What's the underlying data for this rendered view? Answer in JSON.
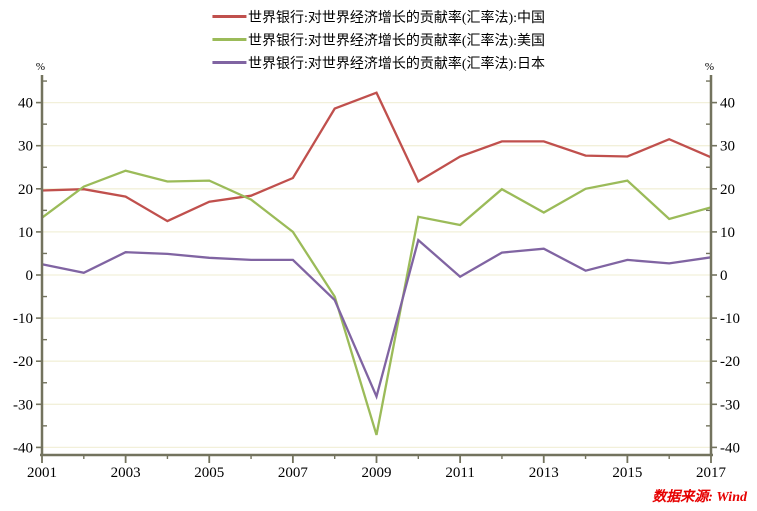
{
  "source_note": "数据来源: Wind",
  "colors": {
    "china_line": "#c0504d",
    "usa_line": "#9bbb59",
    "japan_line": "#8064a2",
    "grid": "#f2f0da",
    "axis": "#73735e",
    "tick_label": "#000000",
    "source_text": "#e60000"
  },
  "chart_data": {
    "type": "line",
    "title": "",
    "xlabel": "",
    "ylabel": "%",
    "grid": "horizontal",
    "legend_position": "top",
    "x": [
      2001,
      2002,
      2003,
      2004,
      2005,
      2006,
      2007,
      2008,
      2009,
      2010,
      2011,
      2012,
      2013,
      2014,
      2015,
      2016,
      2017
    ],
    "xtick_labels": [
      "2001",
      "2003",
      "2005",
      "2007",
      "2009",
      "2011",
      "2013",
      "2015",
      "2017"
    ],
    "ytick_labels": [
      "-40",
      "-30",
      "-20",
      "-10",
      "0",
      "10",
      "20",
      "30",
      "40"
    ],
    "yaxis": {
      "unit": "%",
      "min": -40,
      "max": 45,
      "major_step": 10,
      "minor_step": 5
    },
    "series": [
      {
        "id": "china",
        "name": "世界银行:对世界经济增长的贡献率(汇率法):中国",
        "color": "#c0504d",
        "values": [
          19.6,
          19.9,
          18.2,
          12.5,
          17.0,
          18.4,
          22.5,
          38.6,
          42.3,
          21.7,
          27.5,
          31.0,
          31.0,
          27.7,
          27.5,
          31.5,
          27.3
        ]
      },
      {
        "id": "usa",
        "name": "世界银行:对世界经济增长的贡献率(汇率法):美国",
        "color": "#9bbb59",
        "values": [
          13.3,
          20.5,
          24.2,
          21.7,
          21.9,
          17.5,
          10.0,
          -5.0,
          -37.1,
          13.5,
          11.6,
          19.9,
          14.5,
          20.0,
          21.9,
          13.0,
          15.7
        ]
      },
      {
        "id": "japan",
        "name": "世界银行:对世界经济增长的贡献率(汇率法):日本",
        "color": "#8064a2",
        "values": [
          2.5,
          0.5,
          5.3,
          4.9,
          4.0,
          3.5,
          3.5,
          -5.8,
          -28.2,
          8.1,
          -0.4,
          5.2,
          6.1,
          1.0,
          3.5,
          2.7,
          4.1
        ]
      }
    ]
  }
}
